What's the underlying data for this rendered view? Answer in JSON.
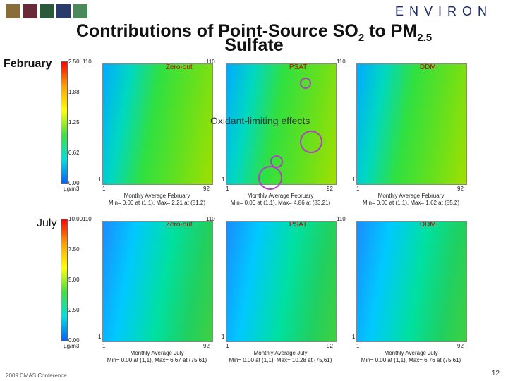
{
  "header": {
    "logo": "ENVIRON",
    "title": {
      "line1": [
        "Contributions of Point-Source SO",
        "2",
        " to PM",
        "2.5"
      ],
      "line2": "Sulfate"
    }
  },
  "rows": [
    {
      "label": "February",
      "colorbar": {
        "ticks": [
          "2.50",
          "1.88",
          "1.25",
          "0.62",
          "0.00"
        ],
        "unit": "µg/m3"
      },
      "panels": [
        {
          "method": "Zero-out",
          "y_top": "110",
          "y_bottom": "1",
          "x_left": "1",
          "x_right": "92",
          "caption": "Monthly Average  February",
          "stats": "Min= 0.00 at (1,1), Max= 2.21 at (81,2)"
        },
        {
          "method": "PSAT",
          "y_top": "110",
          "y_bottom": "1",
          "x_left": "1",
          "x_right": "92",
          "caption": "Monthly Average  February",
          "stats": "Min= 0.00 at (1,1), Max= 4.86 at (83,21)"
        },
        {
          "method": "DDM",
          "y_top": "110",
          "y_bottom": "1",
          "x_left": "1",
          "x_right": "92",
          "caption": "Monthly Average  February",
          "stats": "Min= 0.00 at (1,1), Max= 1.62 at (85,2)"
        }
      ]
    },
    {
      "label": "July",
      "colorbar": {
        "ticks": [
          "10.00",
          "7.50",
          "5.00",
          "2.50",
          "0.00"
        ],
        "unit": "µg/m3"
      },
      "panels": [
        {
          "method": "Zero-out",
          "y_top": "110",
          "y_bottom": "1",
          "x_left": "1",
          "x_right": "92",
          "caption": "Monthly Average  July",
          "stats": "Min= 0.00 at (1,1), Max= 6.67 at (75,61)"
        },
        {
          "method": "PSAT",
          "y_top": "110",
          "y_bottom": "1",
          "x_left": "1",
          "x_right": "92",
          "caption": "Monthly Average  July",
          "stats": "Min= 0.00 at (1,1), Max= 10.28 at (75,61)"
        },
        {
          "method": "DDM",
          "y_top": "110",
          "y_bottom": "1",
          "x_left": "1",
          "x_right": "92",
          "caption": "Monthly Average  July",
          "stats": "Min= 0.00 at (1,1), Max= 6.76 at (75,61)"
        }
      ]
    }
  ],
  "annotation": "Oxidant-limiting effects",
  "footer": {
    "conference": "2009 CMAS Conference",
    "page": "12"
  }
}
